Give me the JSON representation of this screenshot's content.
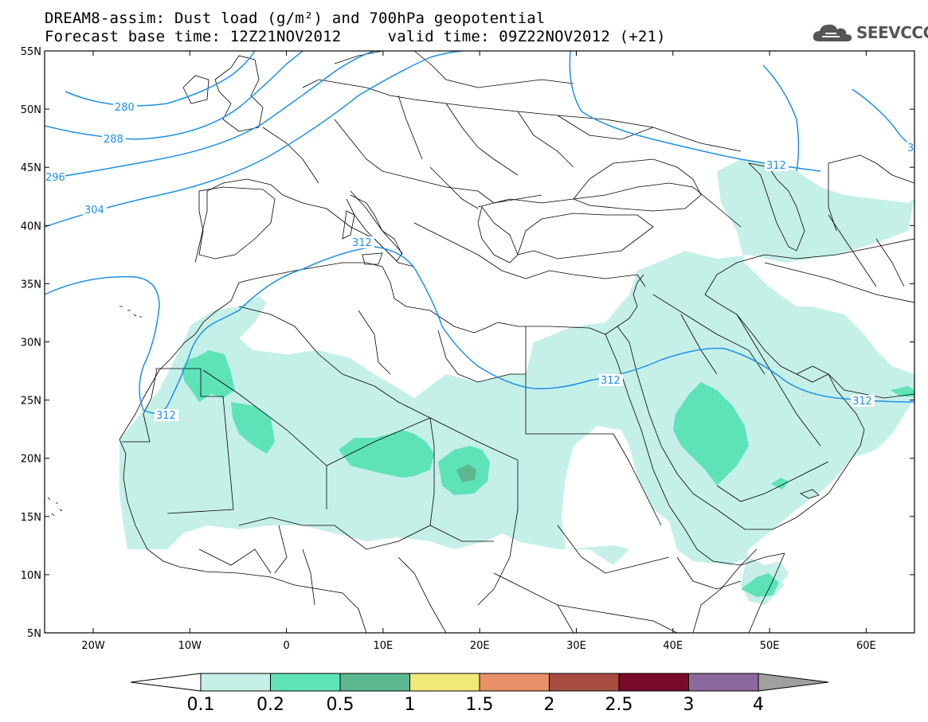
{
  "title": {
    "line1": "DREAM8-assim: Dust load (g/m²) and 700hPa geopotential",
    "line2": "Forecast base time: 12Z21NOV2012     valid time: 09Z22NOV2012 (+21)"
  },
  "logo": {
    "text": "SEEVCCC",
    "icon": "cloud-icon"
  },
  "map": {
    "lat_labels": [
      "55N",
      "50N",
      "45N",
      "40N",
      "35N",
      "30N",
      "25N",
      "20N",
      "15N",
      "10N",
      "5N"
    ],
    "lon_labels": [
      "20W",
      "10W",
      "0",
      "10E",
      "20E",
      "30E",
      "40E",
      "50E",
      "60E"
    ],
    "contour_color": "#1e90e8",
    "contours": [
      {
        "label": "280"
      },
      {
        "label": "288"
      },
      {
        "label": "296"
      },
      {
        "label": "304"
      },
      {
        "label": "312"
      },
      {
        "label": "312"
      },
      {
        "label": "312"
      },
      {
        "label": "312"
      },
      {
        "label": "312"
      },
      {
        "label": "3"
      }
    ]
  },
  "colorbar": {
    "labels": [
      "0.1",
      "0.2",
      "0.5",
      "1",
      "1.5",
      "2",
      "2.5",
      "3",
      "4"
    ],
    "colors": [
      "#c5f0e8",
      "#5ee3b8",
      "#5cb890",
      "#f2e878",
      "#e89068",
      "#a84d40",
      "#7a0a2a",
      "#8c6a9e",
      "#a0a0a0"
    ],
    "under_color": "#ffffff"
  }
}
